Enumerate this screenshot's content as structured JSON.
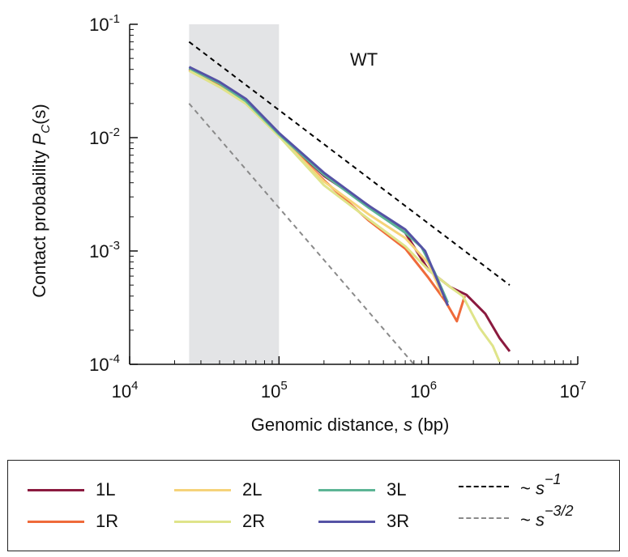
{
  "chart_data": {
    "type": "line",
    "annotation": "WT",
    "ylabel_prefix": "Contact probability ",
    "ylabel_math": "P",
    "ylabel_sub": "C",
    "ylabel_suffix": "(s)",
    "xlabel_prefix": "Genomic distance, ",
    "xlabel_math": "s",
    "xlabel_suffix": " (bp)",
    "x_scale": "log",
    "y_scale": "log",
    "xlim": [
      10000,
      10000000
    ],
    "ylim": [
      0.0001,
      0.1
    ],
    "x_ticks": [
      {
        "base": "10",
        "exp": "4",
        "value": 10000
      },
      {
        "base": "10",
        "exp": "5",
        "value": 100000
      },
      {
        "base": "10",
        "exp": "6",
        "value": 1000000
      },
      {
        "base": "10",
        "exp": "7",
        "value": 10000000
      }
    ],
    "y_ticks": [
      {
        "base": "10",
        "exp": "-4",
        "value": 0.0001
      },
      {
        "base": "10",
        "exp": "-3",
        "value": 0.001
      },
      {
        "base": "10",
        "exp": "-2",
        "value": 0.01
      },
      {
        "base": "10",
        "exp": "-1",
        "value": 0.1
      }
    ],
    "shaded_region": {
      "x_start": 25000,
      "x_end": 100000,
      "color": "#e3e4e6"
    },
    "series": [
      {
        "name": "1L",
        "color": "#8b1a3f",
        "x": [
          25000,
          40000,
          60000,
          100000,
          200000,
          400000,
          700000,
          1000000,
          1400000,
          1800000,
          2400000,
          3000000,
          3500000
        ],
        "y": [
          0.04,
          0.03,
          0.021,
          0.0107,
          0.0046,
          0.0025,
          0.00145,
          0.00068,
          0.00048,
          0.00041,
          0.00028,
          0.00017,
          0.00013
        ]
      },
      {
        "name": "1R",
        "color": "#ef6a3a",
        "x": [
          25000,
          40000,
          60000,
          100000,
          200000,
          400000,
          700000,
          1000000,
          1300000,
          1550000,
          1750000
        ],
        "y": [
          0.04,
          0.029,
          0.02,
          0.0105,
          0.0042,
          0.00185,
          0.00105,
          0.00058,
          0.00036,
          0.00024,
          0.0004
        ]
      },
      {
        "name": "2L",
        "color": "#f6d37a",
        "x": [
          25000,
          40000,
          60000,
          100000,
          200000,
          400000,
          700000,
          1000000,
          1250000
        ],
        "y": [
          0.039,
          0.028,
          0.02,
          0.0103,
          0.0041,
          0.0021,
          0.0013,
          0.00078,
          0.0004
        ]
      },
      {
        "name": "2R",
        "color": "#dfe48a",
        "x": [
          25000,
          40000,
          60000,
          100000,
          200000,
          400000,
          700000,
          1000000,
          1400000,
          1700000,
          2200000,
          2700000,
          3000000
        ],
        "y": [
          0.039,
          0.028,
          0.02,
          0.0103,
          0.0038,
          0.0019,
          0.0011,
          0.00068,
          0.00048,
          0.0004,
          0.00021,
          0.000145,
          0.000105
        ]
      },
      {
        "name": "3L",
        "color": "#5cb595",
        "x": [
          25000,
          40000,
          60000,
          100000,
          200000,
          400000,
          700000,
          900000,
          1100000,
          1350000
        ],
        "y": [
          0.041,
          0.03,
          0.021,
          0.0107,
          0.0047,
          0.0024,
          0.00145,
          0.00108,
          0.00065,
          0.00035
        ]
      },
      {
        "name": "3R",
        "color": "#5553a5",
        "x": [
          25000,
          40000,
          60000,
          100000,
          200000,
          400000,
          700000,
          950000,
          1150000,
          1350000
        ],
        "y": [
          0.042,
          0.031,
          0.022,
          0.011,
          0.0049,
          0.0025,
          0.00155,
          0.001,
          0.00055,
          0.00033
        ]
      }
    ],
    "reference_lines": [
      {
        "label_prefix": "~ ",
        "label_math": "s",
        "label_exp": "−1",
        "color": "#000000",
        "x": [
          25000,
          3500000
        ],
        "y": [
          0.07,
          0.0005
        ]
      },
      {
        "label_prefix": "~ ",
        "label_math": "s",
        "label_exp": "−3/2",
        "color": "#8a8a8a",
        "x": [
          25000,
          800000
        ],
        "y": [
          0.02,
          0.0001
        ]
      }
    ]
  },
  "legend": {
    "rows": [
      [
        "1L",
        "2L",
        "3L"
      ],
      [
        "1R",
        "2R",
        "3R"
      ]
    ]
  }
}
